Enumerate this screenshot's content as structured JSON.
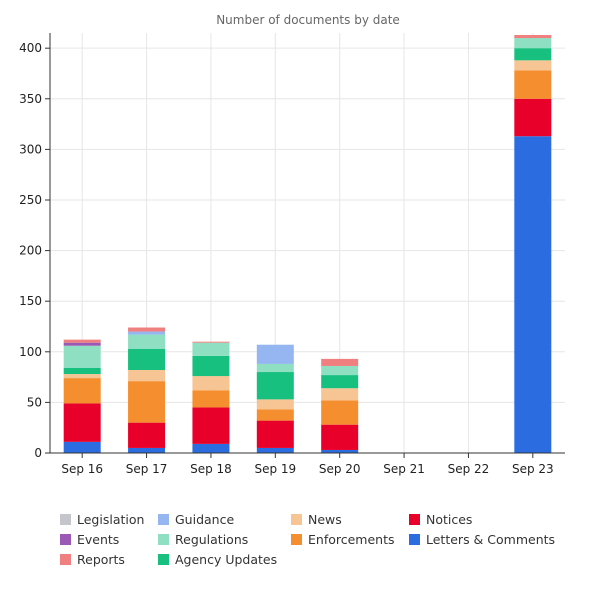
{
  "chart_data": {
    "type": "bar",
    "stacked": true,
    "title": "Number of documents by date",
    "xlabel": "",
    "ylabel": "",
    "ylim": [
      0,
      415
    ],
    "yticks": [
      0,
      50,
      100,
      150,
      200,
      250,
      300,
      350,
      400
    ],
    "categories": [
      "Sep 16",
      "Sep 17",
      "Sep 18",
      "Sep 19",
      "Sep 20",
      "Sep 21",
      "Sep 22",
      "Sep 23"
    ],
    "grid": true,
    "legend_position": "bottom",
    "series": [
      {
        "name": "Letters & Comments",
        "color": "#2b6de0",
        "values": [
          11,
          5,
          9,
          5,
          3,
          0,
          0,
          313
        ]
      },
      {
        "name": "Notices",
        "color": "#e8002a",
        "values": [
          38,
          25,
          36,
          27,
          25,
          0,
          0,
          37
        ]
      },
      {
        "name": "Enforcements",
        "color": "#f58e2e",
        "values": [
          25,
          41,
          17,
          11,
          24,
          0,
          0,
          28
        ]
      },
      {
        "name": "News",
        "color": "#f7c494",
        "values": [
          4,
          11,
          14,
          10,
          12,
          0,
          0,
          10
        ]
      },
      {
        "name": "Agency Updates",
        "color": "#17c07f",
        "values": [
          6,
          21,
          20,
          27,
          13,
          0,
          0,
          12
        ]
      },
      {
        "name": "Regulations",
        "color": "#8fdfc2",
        "values": [
          22,
          14,
          13,
          8,
          9,
          0,
          0,
          10
        ]
      },
      {
        "name": "Guidance",
        "color": "#95b6f0",
        "values": [
          0,
          3,
          0,
          19,
          0,
          0,
          0,
          0
        ]
      },
      {
        "name": "Events",
        "color": "#9b59b6",
        "values": [
          3,
          0,
          0,
          0,
          0,
          0,
          0,
          0
        ]
      },
      {
        "name": "Reports",
        "color": "#f08080",
        "values": [
          3,
          4,
          1,
          0,
          7,
          0,
          0,
          3
        ]
      },
      {
        "name": "Legislation",
        "color": "#c5c5cc",
        "values": [
          0,
          0,
          0,
          0,
          0,
          0,
          0,
          0
        ]
      }
    ],
    "legend_order": [
      "Legislation",
      "Guidance",
      "News",
      "Notices",
      "Events",
      "Regulations",
      "Enforcements",
      "Letters & Comments",
      "Reports",
      "Agency Updates"
    ]
  }
}
